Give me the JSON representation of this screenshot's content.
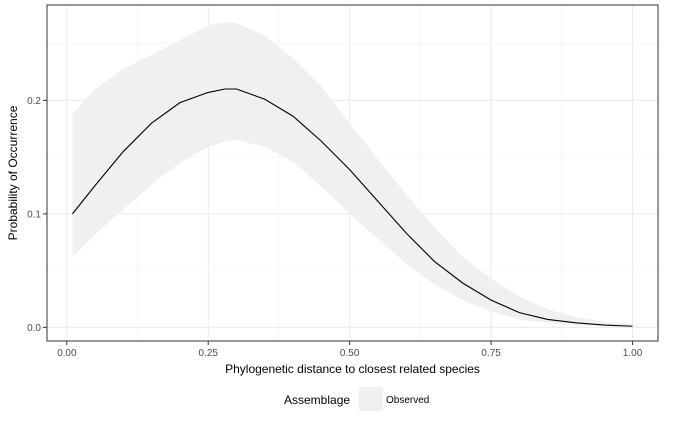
{
  "chart_data": {
    "type": "line",
    "title": "",
    "xlabel": "Phylogenetic distance to closest related species",
    "ylabel": "Probability of Occurrence",
    "xlim": [
      -0.035,
      1.045
    ],
    "ylim": [
      -0.012,
      0.284
    ],
    "x_ticks": [
      0.0,
      0.25,
      0.5,
      0.75,
      1.0
    ],
    "x_tick_labels": [
      "0.00",
      "0.25",
      "0.50",
      "0.75",
      "1.00"
    ],
    "y_ticks": [
      0.0,
      0.1,
      0.2
    ],
    "y_tick_labels": [
      "0.0",
      "0.1",
      "0.2"
    ],
    "grid": true,
    "legend": {
      "title": "Assemblage",
      "position": "bottom",
      "entries": [
        {
          "label": "Observed",
          "fill": "#f0f0f0"
        }
      ]
    },
    "series": [
      {
        "name": "Observed",
        "color": "#000000",
        "ribbon_color": "#f0f0f0",
        "x": [
          0.01,
          0.05,
          0.1,
          0.15,
          0.2,
          0.25,
          0.28,
          0.3,
          0.35,
          0.4,
          0.45,
          0.5,
          0.55,
          0.6,
          0.65,
          0.7,
          0.75,
          0.8,
          0.85,
          0.9,
          0.95,
          1.0
        ],
        "y": [
          0.1,
          0.125,
          0.155,
          0.18,
          0.198,
          0.207,
          0.21,
          0.21,
          0.201,
          0.186,
          0.164,
          0.139,
          0.111,
          0.083,
          0.058,
          0.039,
          0.024,
          0.013,
          0.007,
          0.004,
          0.002,
          0.001
        ],
        "lower": [
          0.062,
          0.082,
          0.104,
          0.126,
          0.145,
          0.159,
          0.164,
          0.165,
          0.159,
          0.146,
          0.124,
          0.1,
          0.078,
          0.056,
          0.038,
          0.024,
          0.014,
          0.007,
          0.004,
          0.002,
          0.001,
          0.0005
        ],
        "upper": [
          0.188,
          0.21,
          0.228,
          0.24,
          0.253,
          0.266,
          0.269,
          0.268,
          0.257,
          0.237,
          0.212,
          0.18,
          0.148,
          0.117,
          0.088,
          0.062,
          0.043,
          0.027,
          0.016,
          0.009,
          0.005,
          0.003
        ]
      }
    ]
  }
}
